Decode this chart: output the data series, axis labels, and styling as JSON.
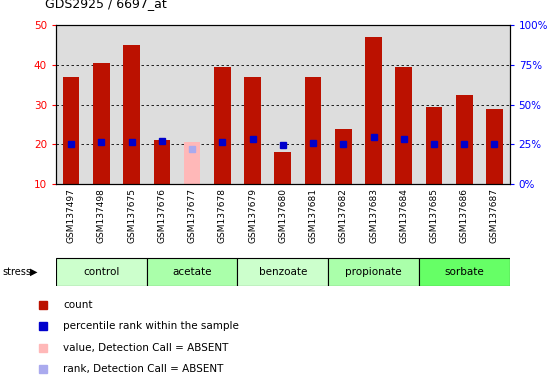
{
  "title": "GDS2925 / 6697_at",
  "samples": [
    "GSM137497",
    "GSM137498",
    "GSM137675",
    "GSM137676",
    "GSM137677",
    "GSM137678",
    "GSM137679",
    "GSM137680",
    "GSM137681",
    "GSM137682",
    "GSM137683",
    "GSM137684",
    "GSM137685",
    "GSM137686",
    "GSM137687"
  ],
  "count_values": [
    37,
    40.5,
    45,
    21,
    20.5,
    39.5,
    37,
    18,
    37,
    24,
    47,
    39.5,
    29.5,
    32.5,
    29
  ],
  "rank_values": [
    25,
    26.5,
    26.5,
    27,
    22,
    26.5,
    28.5,
    24.5,
    26,
    25.5,
    29.5,
    28.5,
    25.5,
    25.5,
    25.5
  ],
  "absent_count": [
    null,
    null,
    null,
    null,
    20.5,
    null,
    null,
    null,
    null,
    null,
    null,
    null,
    null,
    null,
    null
  ],
  "absent_rank": [
    null,
    null,
    null,
    null,
    22,
    null,
    null,
    null,
    null,
    null,
    null,
    null,
    null,
    null,
    null
  ],
  "group_defs": [
    {
      "label": "control",
      "indices": [
        0,
        1,
        2
      ],
      "color": "#ccffcc"
    },
    {
      "label": "acetate",
      "indices": [
        3,
        4,
        5
      ],
      "color": "#aaffaa"
    },
    {
      "label": "benzoate",
      "indices": [
        6,
        7,
        8
      ],
      "color": "#ccffcc"
    },
    {
      "label": "propionate",
      "indices": [
        9,
        10,
        11
      ],
      "color": "#aaffaa"
    },
    {
      "label": "sorbate",
      "indices": [
        12,
        13,
        14
      ],
      "color": "#66ff66"
    }
  ],
  "ylim_left": [
    10,
    50
  ],
  "ylim_right": [
    0,
    100
  ],
  "yticks_left": [
    10,
    20,
    30,
    40,
    50
  ],
  "yticks_right": [
    0,
    25,
    50,
    75,
    100
  ],
  "ytick_right_labels": [
    "0%",
    "25%",
    "50%",
    "75%",
    "100%"
  ],
  "bar_color": "#bb1100",
  "dot_color": "#0000cc",
  "absent_bar_color": "#ffb8b8",
  "absent_dot_color": "#aaaaee",
  "plot_bg": "#dddddd",
  "bar_width": 0.55,
  "legend": [
    {
      "color": "#bb1100",
      "label": "count"
    },
    {
      "color": "#0000cc",
      "label": "percentile rank within the sample"
    },
    {
      "color": "#ffb8b8",
      "label": "value, Detection Call = ABSENT"
    },
    {
      "color": "#aaaaee",
      "label": "rank, Detection Call = ABSENT"
    }
  ]
}
